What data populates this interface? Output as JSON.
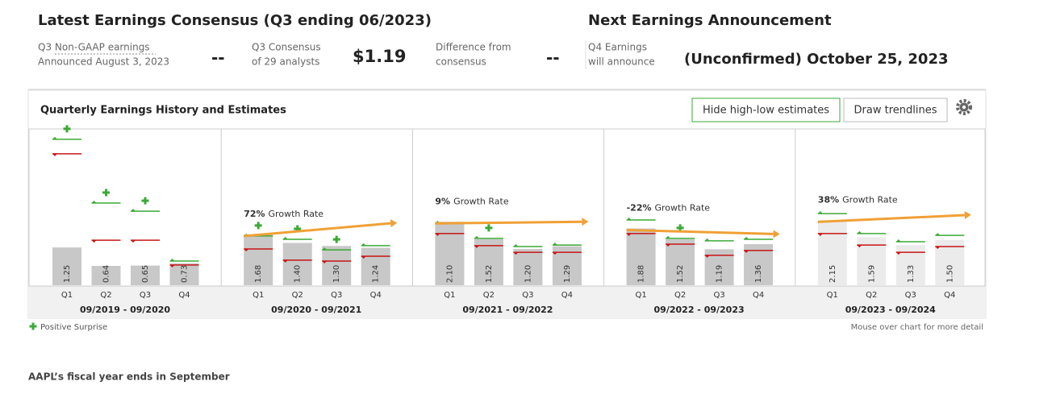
{
  "header": {
    "consensus_title": "Latest Earnings Consensus (Q3 ending 06/2023)",
    "reported_label": [
      "Q3 Non-GAAP earnings",
      "Announced August 3, 2023"
    ],
    "reported_value": "--",
    "consensus_label": [
      "Q3 Consensus",
      "of 29 analysts"
    ],
    "consensus_value": "$1.19",
    "difference_label": [
      "Difference from",
      "consensus"
    ],
    "difference_value": "--",
    "next_title": "Next Earnings Announcement",
    "next_label": [
      "Q4 Earnings",
      "will announce"
    ],
    "next_value": "(Unconfirmed) October 25, 2023"
  },
  "chart_data": {
    "type": "bar",
    "title": "Quarterly Earnings History and Estimates",
    "buttons": [
      "Hide high-low estimates",
      "Draw trendlines"
    ],
    "categories": [
      "Q1",
      "Q2",
      "Q3",
      "Q4"
    ],
    "growth_caption": "Growth Rate",
    "bar_color": "#c8c8c8",
    "estimate_color": "#ebebeb",
    "high_color": "#3aaa35",
    "low_color": "#c81414",
    "trend_color": "#f0a035",
    "groups": [
      {
        "label": "09/2019 - 09/2020",
        "values": [
          1.25,
          0.64,
          0.65,
          0.73
        ],
        "value_labels": [
          "1.25",
          "0.64",
          "0.65",
          "0.73"
        ],
        "high": [
          4.83,
          2.72,
          2.45,
          0.8
        ],
        "low": [
          4.35,
          1.49,
          1.49,
          0.67
        ],
        "surprise": [
          true,
          true,
          true,
          false
        ],
        "estimate": false
      },
      {
        "label": "09/2020 - 09/2021",
        "values": [
          1.68,
          1.4,
          1.3,
          1.24
        ],
        "value_labels": [
          "1.68",
          "1.40",
          "1.30",
          "1.24"
        ],
        "high": [
          1.63,
          1.52,
          1.17,
          1.31
        ],
        "low": [
          1.2,
          0.83,
          0.8,
          0.96
        ],
        "surprise": [
          true,
          true,
          true,
          false
        ],
        "estimate": false,
        "growth": 72,
        "growth_label": "72%"
      },
      {
        "label": "09/2021 - 09/2022",
        "values": [
          2.1,
          1.52,
          1.2,
          1.29
        ],
        "value_labels": [
          "2.10",
          "1.52",
          "1.20",
          "1.29"
        ],
        "high": [
          2.05,
          1.55,
          1.28,
          1.33
        ],
        "low": [
          1.71,
          1.31,
          1.09,
          1.09
        ],
        "surprise": [
          false,
          true,
          false,
          false
        ],
        "estimate": false,
        "growth": 9,
        "growth_label": "9%"
      },
      {
        "label": "09/2022 - 09/2023",
        "values": [
          1.88,
          1.52,
          1.19,
          1.36
        ],
        "value_labels": [
          "1.88",
          "1.52",
          "1.19",
          "1.36"
        ],
        "high": [
          2.16,
          1.55,
          1.47,
          1.52
        ],
        "low": [
          1.71,
          1.36,
          0.99,
          1.15
        ],
        "surprise": [
          false,
          true,
          false,
          false
        ],
        "estimate": false,
        "growth": -22,
        "growth_label": "-22%"
      },
      {
        "label": "09/2023 - 09/2024",
        "values": [
          2.15,
          1.59,
          1.33,
          1.5
        ],
        "value_labels": [
          "2.15",
          "1.59",
          "1.33",
          "1.50"
        ],
        "high": [
          2.37,
          1.71,
          1.44,
          1.65
        ],
        "low": [
          1.71,
          1.33,
          1.09,
          1.28
        ],
        "surprise": [
          false,
          false,
          false,
          false
        ],
        "estimate": true,
        "growth": 38,
        "growth_label": "38%"
      }
    ],
    "legend": "Positive Surprise",
    "hint": "Mouse over chart for more detail"
  },
  "footer": "AAPL’s fiscal year ends in September"
}
